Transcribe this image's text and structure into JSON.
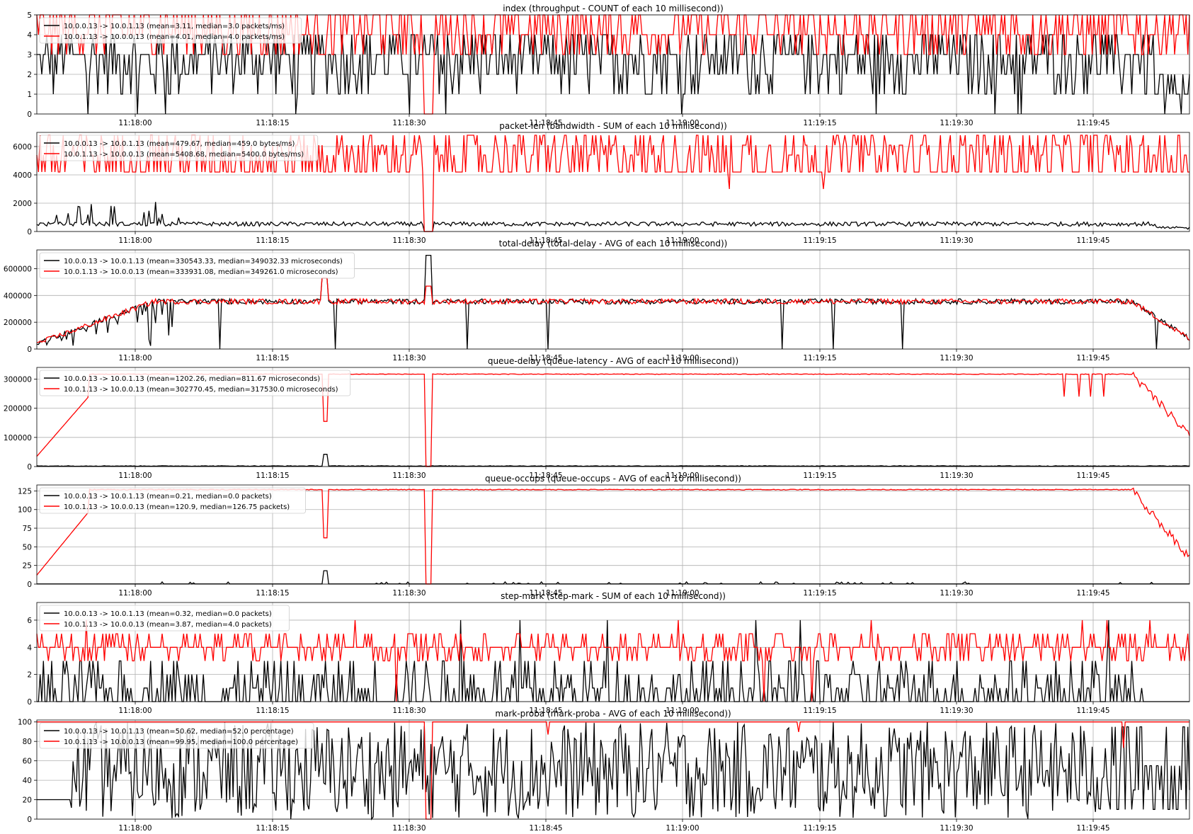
{
  "x_ticks": [
    "11:18:00",
    "11:18:15",
    "11:18:30",
    "11:18:45",
    "11:19:00",
    "11:19:15",
    "11:19:30",
    "11:19:45"
  ],
  "series_colors": [
    "#000000",
    "#ff0000"
  ],
  "chart_data": [
    {
      "type": "line",
      "title": "index (throughput - COUNT of each 10 millisecond))",
      "ylim": [
        0,
        5
      ],
      "yticks": [
        0,
        1,
        2,
        3,
        4,
        5
      ],
      "grid": true,
      "legend": "top-left",
      "x_range": [
        "11:17:52",
        "11:19:55"
      ],
      "series": [
        {
          "name": "10.0.0.13 -> 10.0.1.13 (mean=3.11, median=3.0 packets/ms)",
          "color": "#000000",
          "mean": 3.11,
          "median": 3.0
        },
        {
          "name": "10.0.1.13 -> 10.0.0.13 (mean=4.01, median=4.0 packets/ms)",
          "color": "#ff0000",
          "mean": 4.01,
          "median": 4.0
        }
      ]
    },
    {
      "type": "line",
      "title": "packet-len (bandwidth - SUM of each 10 millisecond))",
      "ylim": [
        0,
        7000
      ],
      "yticks": [
        0,
        2000,
        4000,
        6000
      ],
      "grid": true,
      "legend": "top-left",
      "x_range": [
        "11:17:52",
        "11:19:55"
      ],
      "series": [
        {
          "name": "10.0.0.13 -> 10.0.1.13 (mean=479.67, median=459.0 bytes/ms)",
          "color": "#000000",
          "mean": 479.67,
          "median": 459.0
        },
        {
          "name": "10.0.1.13 -> 10.0.0.13 (mean=5408.68, median=5400.0 bytes/ms)",
          "color": "#ff0000",
          "mean": 5408.68,
          "median": 5400.0
        }
      ]
    },
    {
      "type": "line",
      "title": "total-delay (total-delay - AVG of each 10 millisecond))",
      "ylim": [
        0,
        740000
      ],
      "yticks": [
        0,
        200000,
        400000,
        600000
      ],
      "grid": true,
      "legend": "top-left",
      "x_range": [
        "11:17:52",
        "11:19:55"
      ],
      "series": [
        {
          "name": "10.0.0.13 -> 10.0.1.13 (mean=330543.33, median=349032.33 microseconds)",
          "color": "#000000",
          "mean": 330543.33,
          "median": 349032.33
        },
        {
          "name": "10.0.1.13 -> 10.0.0.13 (mean=333931.08, median=349261.0 microseconds)",
          "color": "#ff0000",
          "mean": 333931.08,
          "median": 349261.0
        }
      ]
    },
    {
      "type": "line",
      "title": "queue-delay (queue-latency - AVG of each 10 millisecond))",
      "ylim": [
        0,
        340000
      ],
      "yticks": [
        0,
        100000,
        200000,
        300000
      ],
      "grid": true,
      "legend": "top-left",
      "x_range": [
        "11:17:52",
        "11:19:55"
      ],
      "series": [
        {
          "name": "10.0.0.13 -> 10.0.1.13 (mean=1202.26, median=811.67 microseconds)",
          "color": "#000000",
          "mean": 1202.26,
          "median": 811.67
        },
        {
          "name": "10.0.1.13 -> 10.0.0.13 (mean=302770.45, median=317530.0 microseconds)",
          "color": "#ff0000",
          "mean": 302770.45,
          "median": 317530.0
        }
      ]
    },
    {
      "type": "line",
      "title": "queue-occups (queue-occups - AVG of each 10 millisecond))",
      "ylim": [
        0,
        133
      ],
      "yticks": [
        0,
        25,
        50,
        75,
        100,
        125
      ],
      "grid": true,
      "legend": "top-left",
      "x_range": [
        "11:17:52",
        "11:19:55"
      ],
      "series": [
        {
          "name": "10.0.0.13 -> 10.0.1.13 (mean=0.21, median=0.0 packets)",
          "color": "#000000",
          "mean": 0.21,
          "median": 0.0
        },
        {
          "name": "10.0.1.13 -> 10.0.0.13 (mean=120.9, median=126.75 packets)",
          "color": "#ff0000",
          "mean": 120.9,
          "median": 126.75
        }
      ]
    },
    {
      "type": "line",
      "title": "step-mark (step-mark - SUM of each 10 millisecond))",
      "ylim": [
        0,
        7.3
      ],
      "yticks": [
        0,
        2,
        4,
        6
      ],
      "grid": true,
      "legend": "top-left",
      "x_range": [
        "11:17:52",
        "11:19:55"
      ],
      "series": [
        {
          "name": "10.0.0.13 -> 10.0.1.13 (mean=0.32, median=0.0 packets)",
          "color": "#000000",
          "mean": 0.32,
          "median": 0.0
        },
        {
          "name": "10.0.1.13 -> 10.0.0.13 (mean=3.87, median=4.0 packets)",
          "color": "#ff0000",
          "mean": 3.87,
          "median": 4.0
        }
      ]
    },
    {
      "type": "line",
      "title": "mark-proba (mark-proba - AVG of each 10 millisecond))",
      "ylim": [
        0,
        102
      ],
      "yticks": [
        0,
        20,
        40,
        60,
        80,
        100
      ],
      "grid": true,
      "legend": "top-left",
      "x_range": [
        "11:17:52",
        "11:19:55"
      ],
      "series": [
        {
          "name": "10.0.0.13 -> 10.0.1.13 (mean=50.62, median=52.0 percentage)",
          "color": "#000000",
          "mean": 50.62,
          "median": 52.0
        },
        {
          "name": "10.0.1.13 -> 10.0.0.13 (mean=99.95, median=100.0 percentage)",
          "color": "#ff0000",
          "mean": 99.95,
          "median": 100.0
        }
      ]
    }
  ]
}
